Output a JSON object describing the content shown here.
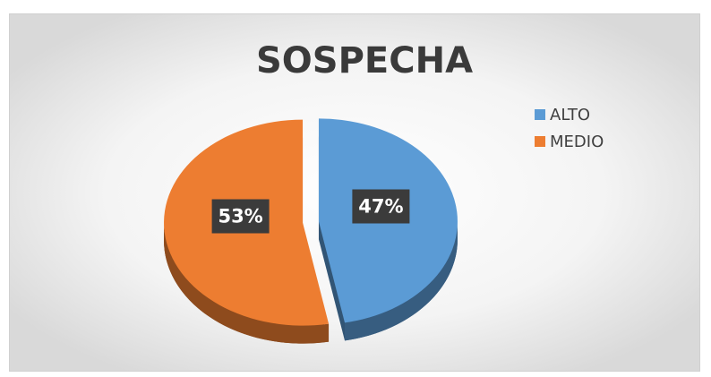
{
  "chart_data": {
    "type": "pie",
    "title": "SOSPECHA",
    "categories": [
      "ALTO",
      "MEDIO"
    ],
    "values": [
      47,
      53
    ],
    "value_labels": [
      "47%",
      "53%"
    ],
    "colors": [
      "#5b9bd5",
      "#ed7d31"
    ],
    "legend": "right"
  }
}
